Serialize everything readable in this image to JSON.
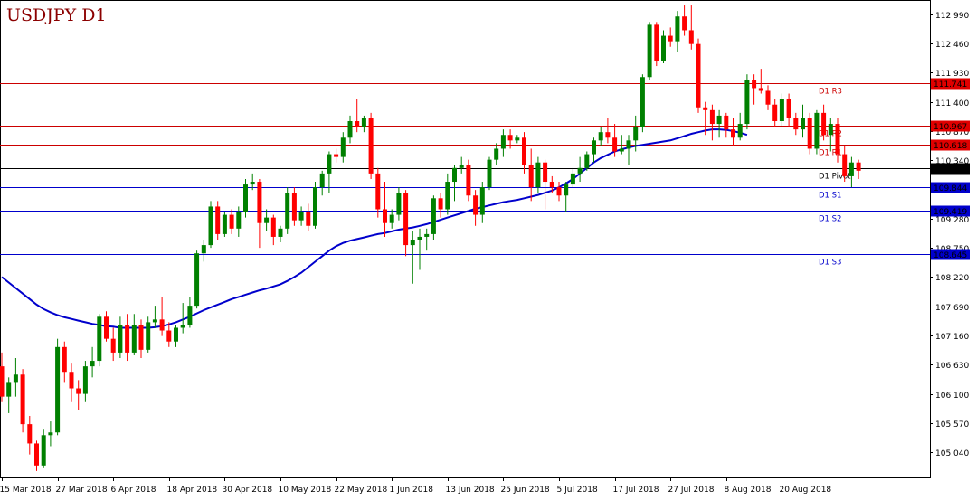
{
  "chart_data": {
    "type": "candlestick",
    "title": "USDJPY D1",
    "y_range": [
      104.6,
      113.2
    ],
    "y_ticks": [
      "112.990",
      "112.460",
      "111.930",
      "111.400",
      "110.870",
      "110.340",
      "109.810",
      "109.280",
      "108.750",
      "108.220",
      "107.690",
      "107.160",
      "106.630",
      "106.100",
      "105.570",
      "105.040"
    ],
    "x_ticks": [
      "15 Mar 2018",
      "27 Mar 2018",
      "6 Apr 2018",
      "18 Apr 2018",
      "30 Apr 2018",
      "10 May 2018",
      "22 May 2018",
      "1 Jun 2018",
      "13 Jun 2018",
      "25 Jun 2018",
      "5 Jul 2018",
      "17 Jul 2018",
      "27 Jul 2018",
      "8 Aug 2018",
      "20 Aug 2018"
    ],
    "x_tick_index": [
      0,
      8,
      16,
      24,
      32,
      40,
      48,
      56,
      64,
      72,
      80,
      88,
      96,
      104,
      112
    ],
    "colors": {
      "bull": "#008000",
      "bear": "#ff0000",
      "ma": "#0000cc",
      "resistance": "#cc0000",
      "support": "#0000cc",
      "pivot": "#000000"
    },
    "levels": [
      {
        "name": "D1 R3",
        "value": 111.741,
        "label": "111.741",
        "kind": "resistance"
      },
      {
        "name": "D1 R2",
        "value": 110.967,
        "label": "110.967",
        "kind": "resistance"
      },
      {
        "name": "D1 R1",
        "value": 110.618,
        "label": "110.618",
        "kind": "resistance"
      },
      {
        "name": "D1 Pivot",
        "value": 110.193,
        "label": "110.193",
        "kind": "pivot"
      },
      {
        "name": "D1 S1",
        "value": 109.844,
        "label": "109.844",
        "kind": "support"
      },
      {
        "name": "D1 S2",
        "value": 109.419,
        "label": "109.419",
        "kind": "support"
      },
      {
        "name": "D1 S3",
        "value": 108.645,
        "label": "108.645",
        "kind": "support"
      }
    ],
    "current_price": "110.193",
    "candles_ohlc": [
      [
        106.6,
        106.85,
        105.95,
        106.05
      ],
      [
        106.05,
        106.4,
        105.75,
        106.3
      ],
      [
        106.3,
        106.75,
        106.05,
        106.45
      ],
      [
        106.45,
        106.55,
        105.4,
        105.55
      ],
      [
        105.55,
        105.7,
        105.0,
        105.2
      ],
      [
        105.2,
        105.25,
        104.7,
        104.8
      ],
      [
        104.8,
        105.45,
        104.75,
        105.35
      ],
      [
        105.35,
        105.6,
        105.15,
        105.4
      ],
      [
        105.4,
        107.1,
        105.35,
        106.95
      ],
      [
        106.95,
        107.05,
        106.3,
        106.5
      ],
      [
        106.5,
        106.65,
        105.95,
        106.2
      ],
      [
        106.2,
        106.35,
        105.8,
        106.1
      ],
      [
        106.1,
        106.7,
        105.95,
        106.6
      ],
      [
        106.6,
        106.95,
        106.4,
        106.7
      ],
      [
        106.7,
        107.55,
        106.6,
        107.5
      ],
      [
        107.5,
        107.6,
        107.05,
        107.1
      ],
      [
        107.1,
        107.3,
        106.7,
        106.85
      ],
      [
        106.85,
        107.5,
        106.75,
        107.35
      ],
      [
        107.35,
        107.55,
        106.7,
        106.85
      ],
      [
        106.85,
        107.55,
        106.8,
        107.35
      ],
      [
        107.35,
        107.45,
        106.75,
        106.9
      ],
      [
        106.9,
        107.5,
        106.85,
        107.4
      ],
      [
        107.4,
        107.7,
        107.3,
        107.45
      ],
      [
        107.45,
        107.85,
        107.15,
        107.25
      ],
      [
        107.25,
        107.4,
        106.95,
        107.05
      ],
      [
        107.05,
        107.35,
        106.95,
        107.3
      ],
      [
        107.3,
        107.75,
        107.2,
        107.35
      ],
      [
        107.35,
        107.85,
        107.3,
        107.7
      ],
      [
        107.7,
        108.7,
        107.65,
        108.65
      ],
      [
        108.65,
        108.9,
        108.5,
        108.8
      ],
      [
        108.8,
        109.6,
        108.75,
        109.5
      ],
      [
        109.5,
        109.6,
        108.9,
        109.0
      ],
      [
        109.0,
        109.4,
        108.95,
        109.35
      ],
      [
        109.35,
        109.45,
        109.0,
        109.1
      ],
      [
        109.1,
        109.5,
        108.95,
        109.4
      ],
      [
        109.4,
        110.0,
        109.3,
        109.9
      ],
      [
        109.9,
        110.1,
        109.8,
        109.95
      ],
      [
        109.95,
        110.0,
        108.75,
        109.2
      ],
      [
        109.2,
        109.45,
        109.05,
        109.3
      ],
      [
        109.3,
        109.35,
        108.8,
        108.95
      ],
      [
        108.95,
        109.15,
        108.85,
        109.1
      ],
      [
        109.1,
        109.85,
        109.0,
        109.75
      ],
      [
        109.75,
        109.85,
        109.15,
        109.25
      ],
      [
        109.25,
        109.5,
        109.15,
        109.4
      ],
      [
        109.4,
        109.55,
        109.05,
        109.15
      ],
      [
        109.15,
        109.95,
        109.1,
        109.85
      ],
      [
        109.85,
        110.15,
        109.7,
        110.1
      ],
      [
        110.1,
        110.5,
        109.75,
        110.45
      ],
      [
        110.45,
        110.55,
        110.3,
        110.4
      ],
      [
        110.4,
        110.85,
        110.3,
        110.75
      ],
      [
        110.75,
        111.15,
        110.65,
        111.05
      ],
      [
        111.05,
        111.45,
        110.85,
        110.95
      ],
      [
        110.95,
        111.15,
        110.85,
        111.1
      ],
      [
        111.1,
        111.2,
        110.0,
        110.1
      ],
      [
        110.1,
        110.2,
        109.3,
        109.45
      ],
      [
        109.45,
        109.95,
        108.95,
        109.2
      ],
      [
        109.2,
        109.45,
        109.1,
        109.35
      ],
      [
        109.35,
        109.85,
        109.25,
        109.75
      ],
      [
        109.75,
        109.8,
        108.6,
        108.8
      ],
      [
        108.8,
        109.05,
        108.1,
        108.9
      ],
      [
        108.9,
        109.1,
        108.35,
        108.95
      ],
      [
        108.95,
        109.1,
        108.7,
        109.0
      ],
      [
        109.0,
        109.7,
        108.9,
        109.65
      ],
      [
        109.65,
        109.75,
        109.3,
        109.45
      ],
      [
        109.45,
        110.1,
        109.35,
        109.95
      ],
      [
        109.95,
        110.25,
        109.6,
        110.2
      ],
      [
        110.2,
        110.4,
        110.1,
        110.25
      ],
      [
        110.25,
        110.35,
        109.6,
        109.7
      ],
      [
        109.7,
        109.8,
        109.15,
        109.35
      ],
      [
        109.35,
        109.95,
        109.2,
        109.85
      ],
      [
        109.85,
        110.4,
        109.8,
        110.35
      ],
      [
        110.35,
        110.65,
        110.25,
        110.55
      ],
      [
        110.55,
        110.9,
        110.4,
        110.8
      ],
      [
        110.8,
        110.9,
        110.55,
        110.7
      ],
      [
        110.7,
        110.8,
        110.65,
        110.75
      ],
      [
        110.75,
        110.85,
        110.1,
        110.25
      ],
      [
        110.25,
        110.55,
        109.6,
        109.85
      ],
      [
        109.85,
        110.4,
        109.75,
        110.3
      ],
      [
        110.3,
        110.35,
        109.45,
        109.95
      ],
      [
        109.95,
        110.05,
        109.75,
        109.85
      ],
      [
        109.85,
        109.95,
        109.6,
        109.7
      ],
      [
        109.7,
        109.95,
        109.4,
        109.9
      ],
      [
        109.9,
        110.2,
        109.85,
        110.1
      ],
      [
        110.1,
        110.4,
        109.95,
        110.2
      ],
      [
        110.2,
        110.5,
        110.15,
        110.45
      ],
      [
        110.45,
        110.75,
        110.3,
        110.7
      ],
      [
        110.7,
        110.95,
        110.6,
        110.85
      ],
      [
        110.85,
        111.1,
        110.65,
        110.75
      ],
      [
        110.75,
        111.0,
        110.4,
        110.5
      ],
      [
        110.5,
        110.8,
        110.45,
        110.55
      ],
      [
        110.55,
        110.8,
        110.25,
        110.7
      ],
      [
        110.7,
        111.15,
        110.5,
        110.95
      ],
      [
        110.95,
        111.9,
        110.85,
        111.85
      ],
      [
        111.85,
        112.85,
        111.8,
        112.8
      ],
      [
        112.8,
        112.85,
        112.05,
        112.15
      ],
      [
        112.15,
        112.7,
        112.1,
        112.6
      ],
      [
        112.6,
        112.75,
        112.4,
        112.5
      ],
      [
        112.5,
        113.05,
        112.3,
        112.95
      ],
      [
        112.95,
        113.15,
        112.6,
        112.7
      ],
      [
        112.7,
        113.15,
        112.35,
        112.45
      ],
      [
        112.45,
        112.55,
        111.2,
        111.3
      ],
      [
        111.3,
        111.4,
        110.8,
        111.25
      ],
      [
        111.25,
        111.35,
        110.7,
        111.0
      ],
      [
        111.0,
        111.25,
        110.75,
        111.15
      ],
      [
        111.15,
        111.2,
        110.75,
        110.9
      ],
      [
        110.9,
        111.1,
        110.6,
        110.75
      ],
      [
        110.75,
        111.2,
        110.7,
        111.0
      ],
      [
        111.0,
        111.9,
        110.9,
        111.8
      ],
      [
        111.8,
        111.9,
        111.35,
        111.65
      ],
      [
        111.65,
        112.0,
        111.55,
        111.6
      ],
      [
        111.6,
        111.7,
        111.25,
        111.35
      ],
      [
        111.35,
        111.45,
        110.95,
        111.05
      ],
      [
        111.05,
        111.55,
        110.95,
        111.45
      ],
      [
        111.45,
        111.55,
        110.95,
        111.1
      ],
      [
        111.1,
        111.2,
        110.8,
        110.9
      ],
      [
        110.9,
        111.35,
        110.75,
        111.1
      ],
      [
        111.1,
        111.2,
        110.45,
        110.55
      ],
      [
        110.55,
        111.25,
        110.45,
        111.2
      ],
      [
        111.2,
        111.35,
        110.7,
        110.8
      ],
      [
        110.8,
        111.1,
        110.5,
        111.0
      ],
      [
        111.0,
        111.1,
        110.3,
        110.45
      ],
      [
        110.45,
        110.6,
        109.95,
        110.05
      ],
      [
        110.05,
        110.4,
        109.85,
        110.3
      ],
      [
        110.3,
        110.35,
        110.0,
        110.15
      ]
    ],
    "ma_values": [
      108.22,
      108.12,
      108.02,
      107.92,
      107.82,
      107.72,
      107.64,
      107.58,
      107.53,
      107.49,
      107.46,
      107.43,
      107.4,
      107.37,
      107.35,
      107.33,
      107.32,
      107.3,
      107.3,
      107.3,
      107.3,
      107.3,
      107.31,
      107.33,
      107.36,
      107.4,
      107.45,
      107.5,
      107.56,
      107.62,
      107.67,
      107.72,
      107.77,
      107.82,
      107.86,
      107.9,
      107.94,
      107.98,
      108.01,
      108.05,
      108.09,
      108.15,
      108.22,
      108.3,
      108.4,
      108.5,
      108.6,
      108.7,
      108.78,
      108.84,
      108.88,
      108.91,
      108.94,
      108.97,
      109.0,
      109.02,
      109.05,
      109.08,
      109.1,
      109.12,
      109.15,
      109.18,
      109.22,
      109.26,
      109.3,
      109.34,
      109.38,
      109.42,
      109.46,
      109.49,
      109.52,
      109.55,
      109.58,
      109.6,
      109.62,
      109.65,
      109.68,
      109.71,
      109.75,
      109.79,
      109.85,
      109.92,
      110.0,
      110.1,
      110.2,
      110.3,
      110.38,
      110.44,
      110.5,
      110.54,
      110.57,
      110.6,
      110.62,
      110.64,
      110.66,
      110.68,
      110.7,
      110.74,
      110.78,
      110.82,
      110.85,
      110.88,
      110.9,
      110.9,
      110.89,
      110.87,
      110.84,
      110.8
    ]
  }
}
